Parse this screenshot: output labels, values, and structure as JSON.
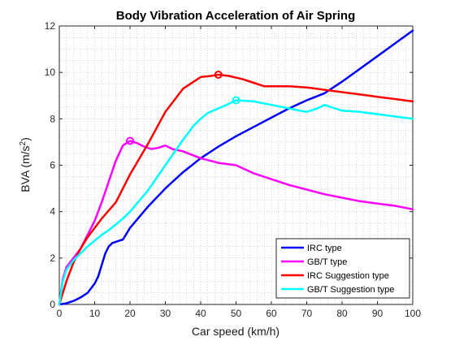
{
  "chart_data": {
    "type": "line",
    "title": "Body Vibration Acceleration of Air Spring",
    "xlabel": "Car speed (km/h)",
    "ylabel_main": "BVA (m/s",
    "ylabel_sup": "2",
    "ylabel_close": ")",
    "xlim": [
      0,
      100
    ],
    "ylim": [
      0,
      12
    ],
    "xticks": [
      0,
      10,
      20,
      30,
      40,
      50,
      60,
      70,
      80,
      90,
      100
    ],
    "yticks": [
      0,
      2,
      4,
      6,
      8,
      10,
      12
    ],
    "grid": "minor dotted",
    "legend_position": "bottom-right",
    "series": [
      {
        "name": "IRC type",
        "color": "#0000ff",
        "x": [
          0,
          2,
          4,
          6,
          8,
          10,
          11,
          12,
          13,
          14,
          15,
          16,
          17,
          18,
          19,
          20,
          25,
          30,
          35,
          40,
          45,
          50,
          55,
          60,
          65,
          70,
          75,
          80,
          85,
          90,
          95,
          100
        ],
        "y": [
          0,
          0.05,
          0.15,
          0.3,
          0.5,
          0.9,
          1.2,
          1.7,
          2.2,
          2.5,
          2.65,
          2.7,
          2.75,
          2.8,
          3.05,
          3.3,
          4.2,
          5.0,
          5.7,
          6.3,
          6.8,
          7.25,
          7.65,
          8.05,
          8.45,
          8.8,
          9.1,
          9.6,
          10.15,
          10.7,
          11.25,
          11.8
        ]
      },
      {
        "name": "GB/T type",
        "color": "#ff00ff",
        "x": [
          0,
          1,
          2,
          4,
          6,
          8,
          10,
          12,
          14,
          16,
          18,
          20,
          22,
          24,
          26,
          28,
          30,
          32,
          35,
          40,
          45,
          50,
          55,
          60,
          65,
          70,
          75,
          80,
          85,
          90,
          95,
          100
        ],
        "y": [
          0,
          1.1,
          1.6,
          2.0,
          2.4,
          3.0,
          3.6,
          4.4,
          5.3,
          6.2,
          6.85,
          7.05,
          6.95,
          6.8,
          6.7,
          6.75,
          6.85,
          6.7,
          6.6,
          6.3,
          6.1,
          6.0,
          5.65,
          5.4,
          5.15,
          4.95,
          4.75,
          4.6,
          4.45,
          4.35,
          4.25,
          4.1
        ]
      },
      {
        "name": "IRC Suggestion type",
        "color": "#ff0000",
        "x": [
          0,
          2,
          4,
          6,
          8,
          10,
          12,
          14,
          16,
          18,
          20,
          25,
          30,
          35,
          40,
          43,
          45,
          48,
          52,
          55,
          58,
          62,
          65,
          70,
          75,
          80,
          85,
          90,
          95,
          100
        ],
        "y": [
          0,
          1.0,
          1.8,
          2.4,
          2.9,
          3.3,
          3.7,
          4.05,
          4.4,
          5.0,
          5.6,
          6.9,
          8.3,
          9.3,
          9.8,
          9.85,
          9.9,
          9.85,
          9.7,
          9.55,
          9.4,
          9.4,
          9.4,
          9.35,
          9.25,
          9.15,
          9.05,
          8.95,
          8.85,
          8.75
        ]
      },
      {
        "name": "GB/T Suggestion type",
        "color": "#00ffff",
        "x": [
          0,
          1,
          2,
          4,
          6,
          8,
          10,
          12,
          14,
          16,
          18,
          20,
          25,
          30,
          35,
          38,
          40,
          42,
          45,
          48,
          50,
          55,
          60,
          65,
          68,
          70,
          73,
          75,
          78,
          80,
          85,
          90,
          95,
          100
        ],
        "y": [
          0,
          1.0,
          1.5,
          1.9,
          2.2,
          2.5,
          2.75,
          3.0,
          3.2,
          3.45,
          3.7,
          4.0,
          4.9,
          6.0,
          7.1,
          7.7,
          8.0,
          8.25,
          8.45,
          8.65,
          8.8,
          8.75,
          8.6,
          8.45,
          8.35,
          8.3,
          8.45,
          8.6,
          8.45,
          8.35,
          8.3,
          8.2,
          8.1,
          8.0
        ]
      }
    ],
    "markers": [
      {
        "series": "GB/T type",
        "x": 20,
        "y": 7.05,
        "color": "#ff00ff"
      },
      {
        "series": "IRC Suggestion type",
        "x": 45,
        "y": 9.9,
        "color": "#ff0000"
      },
      {
        "series": "GB/T Suggestion type",
        "x": 50,
        "y": 8.8,
        "color": "#00ffff"
      }
    ]
  }
}
